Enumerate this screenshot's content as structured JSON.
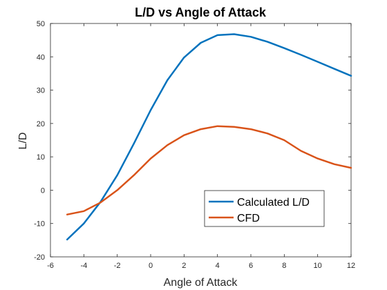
{
  "chart_data": {
    "type": "line",
    "title": "L/D vs Angle of Attack",
    "xlabel": "Angle of Attack",
    "ylabel": "L/D",
    "xlim": [
      -6,
      12
    ],
    "ylim": [
      -20,
      50
    ],
    "xticks": [
      -6,
      -4,
      -2,
      0,
      2,
      4,
      6,
      8,
      10,
      12
    ],
    "yticks": [
      -20,
      -10,
      0,
      10,
      20,
      30,
      40,
      50
    ],
    "grid": false,
    "legend_position": "bottom-right",
    "series": [
      {
        "name": "Calculated L/D",
        "color": "#0072BD",
        "x": [
          -5,
          -4,
          -3,
          -2,
          -1,
          0,
          1,
          2,
          3,
          4,
          5,
          6,
          7,
          8,
          9,
          10,
          11,
          12
        ],
        "y": [
          -14.8,
          -10,
          -3.5,
          4.5,
          14,
          24,
          33,
          39.8,
          44.2,
          46.5,
          46.8,
          46,
          44.5,
          42.6,
          40.6,
          38.5,
          36.4,
          34.3
        ]
      },
      {
        "name": "CFD",
        "color": "#D95319",
        "x": [
          -5,
          -4,
          -3,
          -2,
          -1,
          0,
          1,
          2,
          3,
          4,
          5,
          6,
          7,
          8,
          9,
          10,
          11,
          12
        ],
        "y": [
          -7.3,
          -6.3,
          -3.7,
          0,
          4.5,
          9.5,
          13.5,
          16.5,
          18.3,
          19.2,
          19.0,
          18.3,
          17.0,
          15.0,
          11.8,
          9.5,
          7.8,
          6.7
        ]
      }
    ]
  }
}
